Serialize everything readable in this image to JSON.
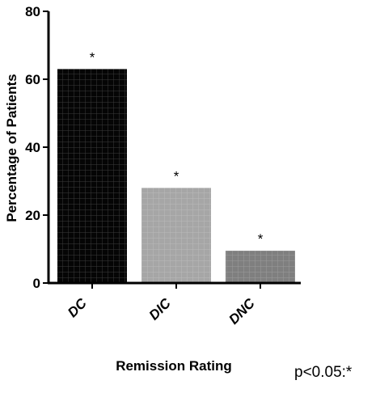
{
  "chart_data": {
    "type": "bar",
    "title": "",
    "xlabel": "Remission Rating",
    "ylabel": "Percentage of Patients",
    "categories": [
      "DC",
      "DIC",
      "DNC"
    ],
    "values": [
      63,
      28,
      9.5
    ],
    "annotations": [
      "*",
      "*",
      "*"
    ],
    "ylim": [
      0,
      80
    ],
    "yticks": [
      0,
      20,
      40,
      60,
      80
    ],
    "ytick_labels": [
      "0",
      "20",
      "40",
      "60",
      "80"
    ],
    "colors": [
      "#050505",
      "#a6a6a6",
      "#7f7f7f"
    ],
    "grid": false,
    "legend": "none"
  },
  "footnote": "p<0.05:*"
}
